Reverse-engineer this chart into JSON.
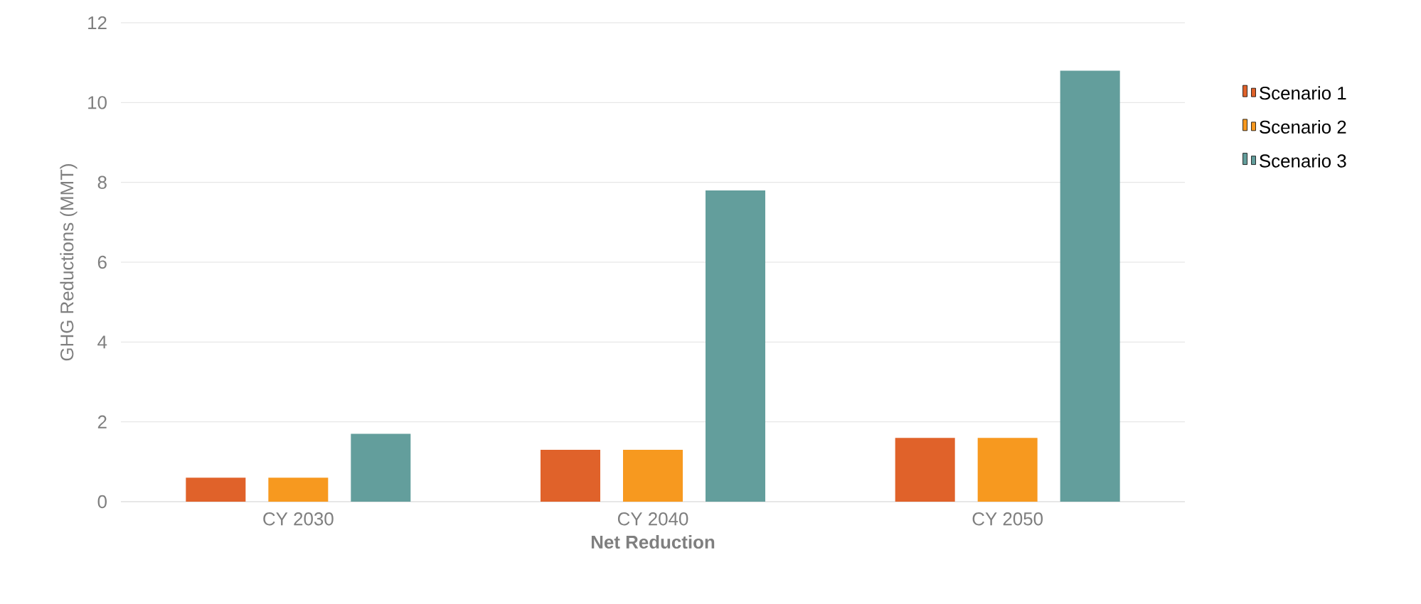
{
  "chart_data": {
    "type": "bar",
    "xlabel": "Net Reduction",
    "ylabel": "GHG Reductions (MMT)",
    "categories": [
      "CY 2030",
      "CY 2040",
      "CY 2050"
    ],
    "series": [
      {
        "name": "Scenario 1",
        "color": "#e0622a",
        "values": [
          0.6,
          1.3,
          1.6
        ]
      },
      {
        "name": "Scenario 2",
        "color": "#f7991f",
        "values": [
          0.6,
          1.3,
          1.6
        ]
      },
      {
        "name": "Scenario 3",
        "color": "#639e9c",
        "values": [
          1.7,
          7.8,
          10.8
        ]
      }
    ],
    "ylim": [
      0,
      12
    ],
    "yticks": [
      0,
      2,
      4,
      6,
      8,
      10,
      12
    ],
    "grid": "y",
    "legend": "right"
  }
}
